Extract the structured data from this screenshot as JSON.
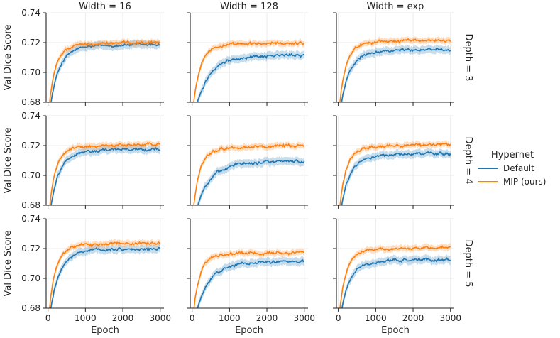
{
  "chart_data": {
    "type": "line",
    "title": "",
    "column_titles": [
      "Width = 16",
      "Width = 128",
      "Width = exp"
    ],
    "row_titles": [
      "Depth = 3",
      "Depth = 4",
      "Depth = 5"
    ],
    "xlabel": "Epoch",
    "ylabel": "Val Dice Score",
    "xlim": [
      -50,
      3100
    ],
    "ylim": [
      0.68,
      0.74
    ],
    "xticks": [
      0,
      1000,
      2000,
      3000
    ],
    "xtick_labels": [
      "0",
      "1000",
      "2000",
      "3000"
    ],
    "yticks": [
      0.68,
      0.7,
      0.72,
      0.74
    ],
    "ytick_labels": [
      "0.68",
      "0.70",
      "0.72",
      "0.74"
    ],
    "grid": true,
    "legend": {
      "title": "Hypernet",
      "placement": "center-right",
      "entries": [
        "Default",
        "MIP (ours)"
      ]
    },
    "series_colors": {
      "Default": "#1f77b4",
      "MIP (ours)": "#ff7f0e"
    },
    "panels": [
      {
        "row": 0,
        "col": 0,
        "final": {
          "Default": 0.719,
          "MIP (ours)": 0.7205
        }
      },
      {
        "row": 0,
        "col": 1,
        "final": {
          "Default": 0.712,
          "MIP (ours)": 0.72
        }
      },
      {
        "row": 0,
        "col": 2,
        "final": {
          "Default": 0.716,
          "MIP (ours)": 0.722
        }
      },
      {
        "row": 1,
        "col": 0,
        "final": {
          "Default": 0.718,
          "MIP (ours)": 0.721
        }
      },
      {
        "row": 1,
        "col": 1,
        "final": {
          "Default": 0.71,
          "MIP (ours)": 0.72
        }
      },
      {
        "row": 1,
        "col": 2,
        "final": {
          "Default": 0.715,
          "MIP (ours)": 0.721
        }
      },
      {
        "row": 2,
        "col": 0,
        "final": {
          "Default": 0.72,
          "MIP (ours)": 0.724
        }
      },
      {
        "row": 2,
        "col": 1,
        "final": {
          "Default": 0.712,
          "MIP (ours)": 0.718
        }
      },
      {
        "row": 2,
        "col": 2,
        "final": {
          "Default": 0.713,
          "MIP (ours)": 0.721
        }
      }
    ]
  }
}
